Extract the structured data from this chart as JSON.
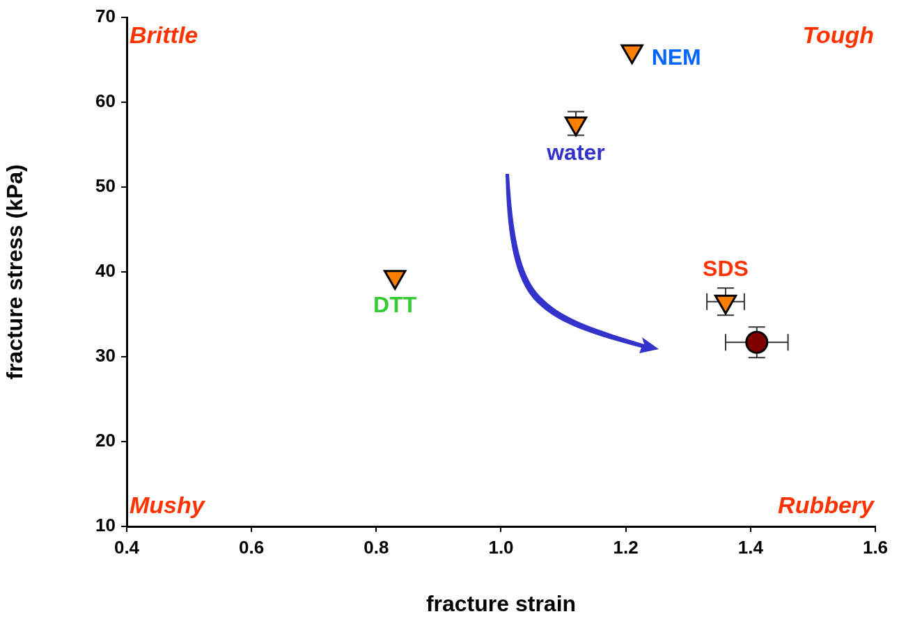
{
  "chart_data": {
    "type": "scatter",
    "xlabel": "fracture strain",
    "ylabel": "fracture stress (kPa)",
    "xlim": [
      0.4,
      1.6
    ],
    "xticks": [
      {
        "value": 0.4,
        "label": "0.4"
      },
      {
        "value": 0.6,
        "label": "0.6"
      },
      {
        "value": 0.8,
        "label": "0.8"
      },
      {
        "value": 1.0,
        "label": "1.0"
      },
      {
        "value": 1.2,
        "label": "1.2"
      },
      {
        "value": 1.4,
        "label": "1.4"
      },
      {
        "value": 1.6,
        "label": "1.6"
      }
    ],
    "ylim": [
      10,
      70
    ],
    "yticks": [
      10,
      20,
      30,
      40,
      50,
      60,
      70
    ],
    "grid": false,
    "legend": false,
    "series": [
      {
        "marker": "triangle",
        "color": "#ff8000",
        "x": [
          1.21,
          1.12,
          0.83,
          1.36
        ],
        "values": [
          66,
          57.5,
          39.4,
          36.5
        ],
        "errors": [
          null,
          1.4,
          null,
          1.6
        ],
        "xerrors": [
          null,
          null,
          null,
          0.03
        ]
      },
      {
        "marker": "circle",
        "color": "#800000",
        "x": [
          1.41
        ],
        "values": [
          31.7
        ],
        "errors": [
          1.8
        ],
        "xerrors": [
          0.05
        ]
      }
    ],
    "annotations": [
      "Brittle",
      "Tough",
      "Mushy",
      "Rubbery",
      {
        "text": "NEM",
        "x": 1.21,
        "y": 66
      },
      {
        "text": "water",
        "x": 1.12,
        "y": 57.5
      },
      {
        "text": "DTT",
        "x": 0.83,
        "y": 39.4
      },
      {
        "text": "SDS",
        "x": 1.36,
        "y": 36.5
      }
    ]
  }
}
